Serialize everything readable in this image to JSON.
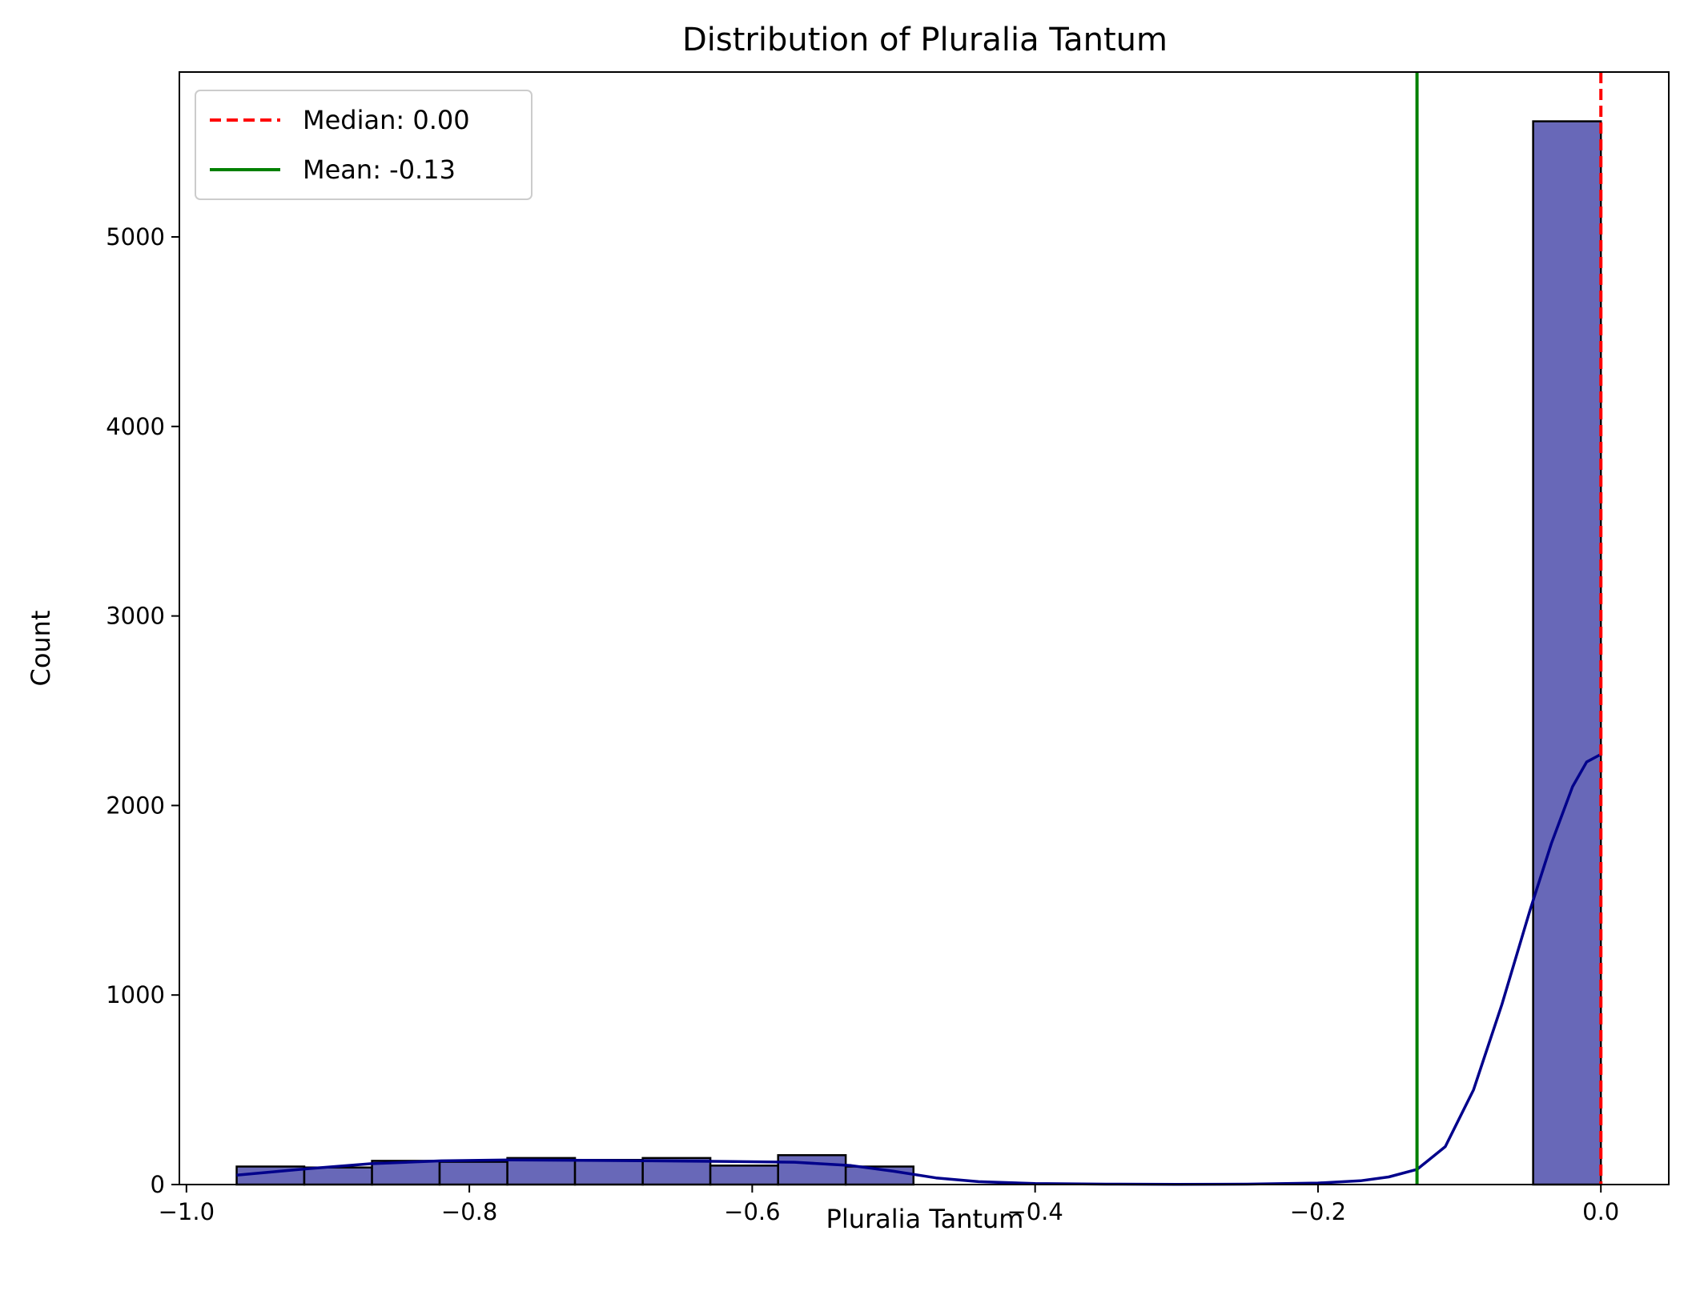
{
  "chart_data": {
    "type": "histogram",
    "title": "Distribution of Pluralia Tantum",
    "xlabel": "Pluralia Tantum",
    "ylabel": "Count",
    "xlim": [
      -1.005,
      0.048
    ],
    "ylim": [
      0,
      5870
    ],
    "xticks": [
      -1.0,
      -0.8,
      -0.6,
      -0.4,
      -0.2,
      0.0
    ],
    "xtick_labels": [
      "−1.0",
      "−0.8",
      "−0.6",
      "−0.4",
      "−0.2",
      "0.0"
    ],
    "yticks": [
      0,
      1000,
      2000,
      3000,
      4000,
      5000
    ],
    "ytick_labels": [
      "0",
      "1000",
      "2000",
      "3000",
      "4000",
      "5000"
    ],
    "grid": false,
    "legend_position": "upper-left",
    "colors": {
      "bar_fill": "#6868b8",
      "bar_edge": "#000000",
      "kde": "#00008b",
      "median": "#ff0000",
      "mean": "#008000"
    },
    "bin_edges": [
      -0.9645,
      -0.9167,
      -0.8688,
      -0.821,
      -0.7731,
      -0.7253,
      -0.6774,
      -0.6296,
      -0.5817,
      -0.5339,
      -0.486,
      -0.4382,
      -0.3903,
      -0.3425,
      -0.2946,
      -0.2468,
      -0.1989,
      -0.1511,
      -0.1032,
      -0.0554,
      -0.0479,
      0.0
    ],
    "bins": [
      {
        "x0": -0.9645,
        "x1": -0.9167,
        "count": 95
      },
      {
        "x0": -0.9167,
        "x1": -0.8688,
        "count": 90
      },
      {
        "x0": -0.8688,
        "x1": -0.821,
        "count": 125
      },
      {
        "x0": -0.821,
        "x1": -0.7731,
        "count": 120
      },
      {
        "x0": -0.7731,
        "x1": -0.7253,
        "count": 140
      },
      {
        "x0": -0.7253,
        "x1": -0.6774,
        "count": 130
      },
      {
        "x0": -0.6774,
        "x1": -0.6296,
        "count": 140
      },
      {
        "x0": -0.6296,
        "x1": -0.5817,
        "count": 100
      },
      {
        "x0": -0.5817,
        "x1": -0.5339,
        "count": 155
      },
      {
        "x0": -0.5339,
        "x1": -0.486,
        "count": 95
      },
      {
        "x0": -0.0479,
        "x1": 0.0,
        "count": 5610
      }
    ],
    "kde": {
      "x": [
        -0.9645,
        -0.92,
        -0.87,
        -0.82,
        -0.77,
        -0.72,
        -0.67,
        -0.62,
        -0.57,
        -0.53,
        -0.5,
        -0.47,
        -0.44,
        -0.4,
        -0.35,
        -0.3,
        -0.25,
        -0.2,
        -0.17,
        -0.15,
        -0.13,
        -0.11,
        -0.09,
        -0.07,
        -0.05,
        -0.035,
        -0.02,
        -0.01,
        0.0
      ],
      "y": [
        50,
        80,
        110,
        125,
        130,
        128,
        125,
        122,
        118,
        100,
        70,
        35,
        15,
        5,
        2,
        1,
        2,
        8,
        20,
        40,
        80,
        200,
        500,
        950,
        1450,
        1800,
        2100,
        2230,
        2270
      ]
    },
    "median": {
      "value": 0.0,
      "label": "Median: 0.00"
    },
    "mean": {
      "value": -0.13,
      "label": "Mean: -0.13"
    }
  }
}
